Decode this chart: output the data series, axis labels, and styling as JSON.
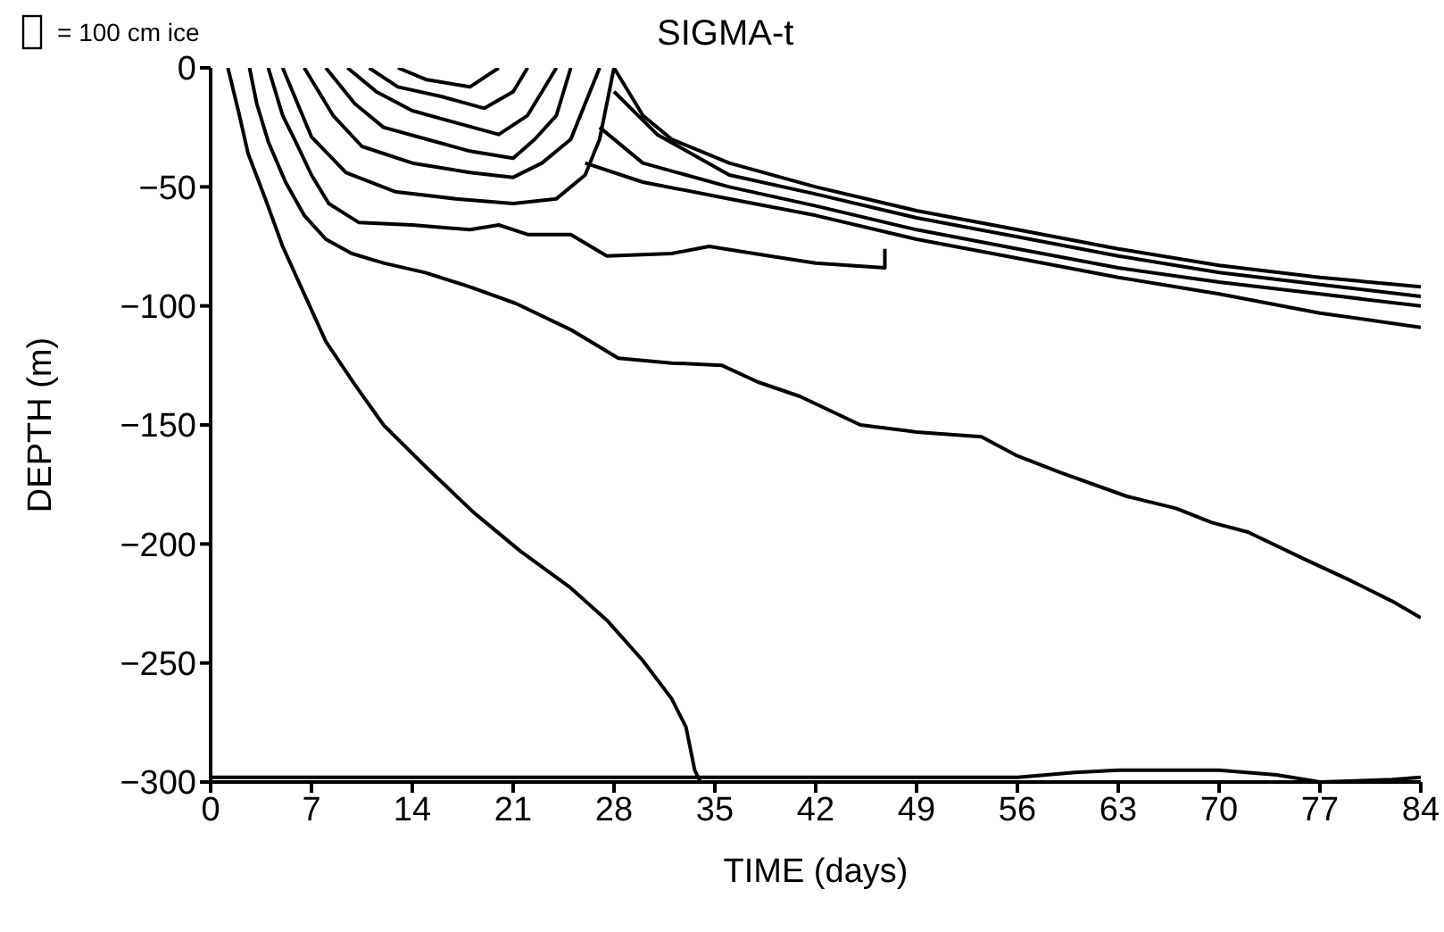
{
  "chart_data": {
    "type": "line",
    "title": "SIGMA-t",
    "xlabel": "TIME  (days)",
    "ylabel": "DEPTH  (m)",
    "annotations": [
      "= 100 cm ice"
    ],
    "xlim": [
      0,
      84
    ],
    "xticks": [
      0,
      7,
      14,
      21,
      28,
      35,
      42,
      49,
      56,
      63,
      70,
      77,
      84
    ],
    "ylim": [
      -300,
      0
    ],
    "yticks": [
      {
        "value": -300,
        "label": "−300"
      },
      {
        "value": -250,
        "label": "−250"
      },
      {
        "value": -200,
        "label": "−200"
      },
      {
        "value": -150,
        "label": "−150"
      },
      {
        "value": -100,
        "label": "−100"
      },
      {
        "value": -50,
        "label": "−50"
      },
      0
    ],
    "marker": "none",
    "line_style": "solid",
    "series": [
      {
        "color": "#000000",
        "x": [
          1.2,
          2,
          2.6,
          3.8,
          5,
          6.5,
          8,
          10,
          12,
          15,
          18.3,
          21.5,
          24.9,
          27.5,
          30,
          32,
          33,
          33.6,
          34
        ],
        "values": [
          0,
          -20,
          -36,
          -55,
          -75,
          -95,
          -115,
          -133,
          -150,
          -168,
          -187,
          -203,
          -218,
          -232,
          -249,
          -265,
          -277,
          -295,
          -300
        ]
      },
      {
        "color": "#000000",
        "x": [
          2.7,
          3.2,
          4,
          5.2,
          6.5,
          8,
          9.8,
          12,
          14.9,
          18,
          21.2,
          25,
          28.3,
          32,
          35.5,
          38,
          40.9,
          45.1,
          49,
          53.5,
          56,
          59,
          63.6,
          67,
          69.5,
          72,
          75.8,
          79,
          82,
          84
        ],
        "values": [
          0,
          -15,
          -31,
          -48,
          -62,
          -72,
          -78,
          -82,
          -86,
          -92,
          -99,
          -110,
          -122,
          -124,
          -125,
          -132,
          -138,
          -150,
          -153,
          -155,
          -163,
          -170,
          -180,
          -185,
          -191,
          -195,
          -206,
          -215,
          -224,
          -231
        ]
      },
      {
        "color": "#000000",
        "x": [
          4,
          5,
          5.9,
          7,
          8.2,
          10.3,
          14,
          18,
          20,
          22,
          25,
          27.5,
          32,
          34.6,
          38.8,
          42,
          46.8,
          46.8
        ],
        "values": [
          0,
          -20,
          -31,
          -45,
          -57,
          -65,
          -66,
          -68,
          -66,
          -70,
          -70,
          -79,
          -78,
          -75,
          -79,
          -82,
          -84,
          -76
        ]
      },
      {
        "color": "#000000",
        "x": [
          5,
          7,
          9.4,
          12.8,
          17,
          21,
          24,
          26,
          27,
          28
        ],
        "values": [
          0,
          -29,
          -44,
          -52,
          -55,
          -57,
          -55,
          -45,
          -30,
          0
        ]
      },
      {
        "color": "#000000",
        "x": [
          6.5,
          8.5,
          10.5,
          14,
          18,
          21,
          23,
          25,
          26,
          27
        ],
        "values": [
          0,
          -20,
          -33,
          -40,
          -44,
          -46,
          -40,
          -30,
          -15,
          0
        ]
      },
      {
        "color": "#000000",
        "x": [
          8,
          10,
          12,
          15,
          18,
          21,
          22.5,
          24,
          25
        ],
        "values": [
          0,
          -15,
          -25,
          -30,
          -35,
          -38,
          -30,
          -20,
          0
        ]
      },
      {
        "color": "#000000",
        "x": [
          9.5,
          11.5,
          14,
          17,
          20,
          22,
          23,
          24
        ],
        "values": [
          0,
          -10,
          -18,
          -23,
          -28,
          -20,
          -10,
          0
        ]
      },
      {
        "color": "#000000",
        "x": [
          11,
          13,
          16,
          19,
          21,
          22
        ],
        "values": [
          0,
          -8,
          -12,
          -17,
          -10,
          0
        ]
      },
      {
        "color": "#000000",
        "x": [
          13,
          15,
          18,
          20
        ],
        "values": [
          0,
          -5,
          -8,
          0
        ]
      },
      {
        "color": "#000000",
        "x": [
          28,
          30,
          32,
          36,
          42,
          49,
          56,
          63,
          70,
          77,
          84
        ],
        "values": [
          0,
          -20,
          -30,
          -40,
          -50,
          -60,
          -68,
          -76,
          -83,
          -88,
          -92
        ]
      },
      {
        "color": "#000000",
        "x": [
          28,
          31,
          36,
          42,
          49,
          56,
          63,
          70,
          77,
          84
        ],
        "values": [
          -10,
          -28,
          -45,
          -53,
          -63,
          -71,
          -79,
          -86,
          -91,
          -96
        ]
      },
      {
        "color": "#000000",
        "x": [
          27,
          30,
          36,
          42,
          49,
          56,
          63,
          70,
          77,
          84
        ],
        "values": [
          -25,
          -40,
          -50,
          -58,
          -68,
          -76,
          -84,
          -90,
          -95,
          -100
        ]
      },
      {
        "color": "#000000",
        "x": [
          26,
          30,
          36,
          42,
          49,
          56,
          63,
          70,
          77,
          84
        ],
        "values": [
          -40,
          -48,
          -55,
          -62,
          -72,
          -80,
          -88,
          -95,
          -103,
          -109
        ]
      },
      {
        "color": "#000000",
        "x": [
          0,
          34,
          56,
          60,
          63,
          70,
          74,
          77,
          82,
          84
        ],
        "values": [
          -298,
          -298,
          -298,
          -296,
          -295,
          -295,
          -297,
          -300,
          -299,
          -298
        ]
      }
    ]
  }
}
